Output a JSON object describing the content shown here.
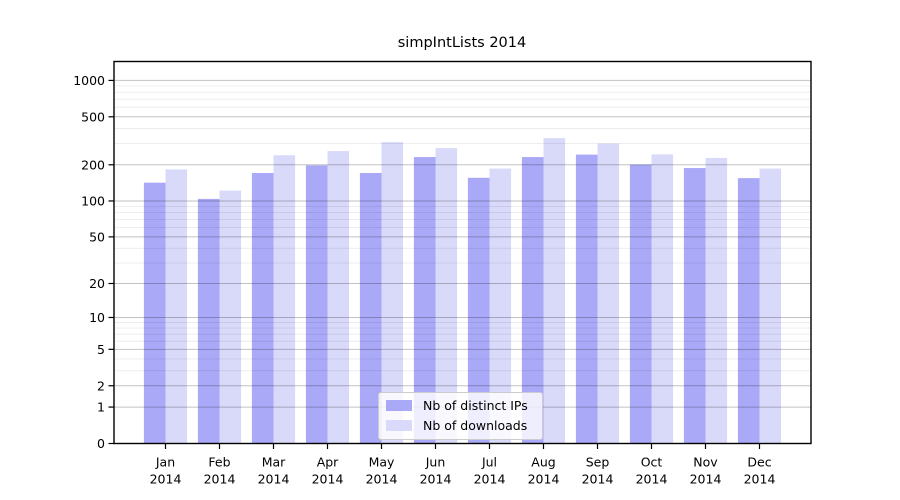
{
  "title": "simpIntLists 2014",
  "chart_data": {
    "type": "bar",
    "title": "simpIntLists 2014",
    "categories": [
      "Jan",
      "Feb",
      "Mar",
      "Apr",
      "May",
      "Jun",
      "Jul",
      "Aug",
      "Sep",
      "Oct",
      "Nov",
      "Dec"
    ],
    "x_sublabel": "2014",
    "series": [
      {
        "name": "Nb of distinct IPs",
        "color": "#a9a9f7",
        "values": [
          142,
          104,
          171,
          198,
          171,
          232,
          156,
          232,
          243,
          201,
          188,
          155
        ]
      },
      {
        "name": "Nb of downloads",
        "color": "#d9d9fa",
        "values": [
          183,
          122,
          240,
          260,
          308,
          275,
          186,
          333,
          300,
          244,
          228,
          186
        ]
      }
    ],
    "y_scale": "log1p",
    "y_ticks": [
      0,
      1,
      2,
      5,
      10,
      20,
      50,
      100,
      200,
      500,
      1000
    ],
    "y_minor_ticks": [
      3,
      4,
      6,
      7,
      8,
      9,
      30,
      40,
      60,
      70,
      80,
      90,
      300,
      400,
      600,
      700,
      800,
      900
    ],
    "y_max": 1434,
    "grid": true,
    "legend_position": "bottom-center",
    "colors": {
      "axis": "#000000",
      "major_grid": "rgba(0,0,0,0.24)",
      "minor_grid": "rgba(0,0,0,0.08)",
      "legend_border": "#cccccc",
      "legend_background": "rgba(255,255,255,0.8)"
    }
  }
}
